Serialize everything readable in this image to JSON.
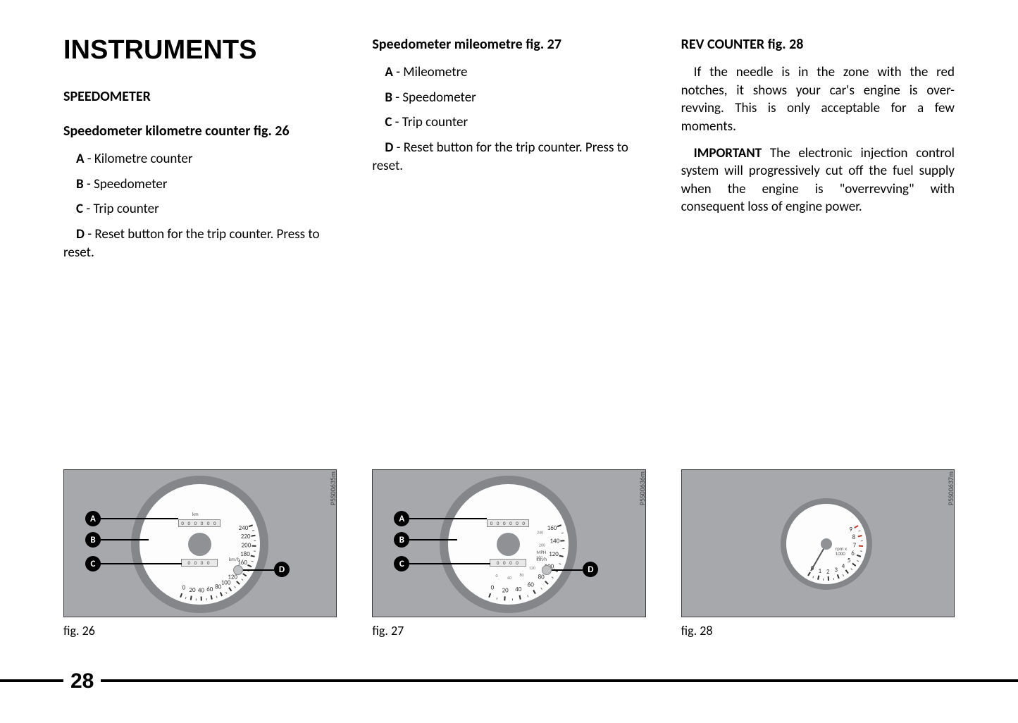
{
  "page_number": "28",
  "main_title": "INSTRUMENTS",
  "col1": {
    "h2": "SPEEDOMETER",
    "h3": "Speedometer kilometre counter fig. 26",
    "items": [
      {
        "label": "A",
        "text": " - Kilometre counter"
      },
      {
        "label": "B",
        "text": " - Speedometer"
      },
      {
        "label": "C",
        "text": " - Trip counter"
      },
      {
        "label": "D",
        "text": " - Reset button for the trip counter. Press to reset."
      }
    ]
  },
  "col2": {
    "h3": "Speedometer mileometre fig. 27",
    "items": [
      {
        "label": "A",
        "text": " - Mileometre"
      },
      {
        "label": "B",
        "text": " - Speedometer"
      },
      {
        "label": "C",
        "text": " - Trip counter"
      },
      {
        "label": "D",
        "text": " - Reset button for the trip counter. Press to reset."
      }
    ]
  },
  "col3": {
    "h3": "REV COUNTER fig. 28",
    "p1": "If the needle is in the zone with the red notches, it shows your car's engine is over-revving. This is only acceptable for a few moments.",
    "p2_strong": "IMPORTANT",
    "p2_rest": " The electronic injection control system will progressively cut off the fuel supply when the engine is \"overrevving\" with consequent loss of engine power."
  },
  "figs": {
    "f26": {
      "caption": "fig. 26",
      "code": "P5S00635m",
      "dial_numbers": [
        "0",
        "20",
        "40",
        "60",
        "80",
        "100",
        "120",
        "140",
        "160",
        "180",
        "200",
        "220",
        "240"
      ],
      "unit1": "km",
      "unit2": "km/h",
      "callouts": [
        "A",
        "B",
        "C",
        "D"
      ]
    },
    "f27": {
      "caption": "fig. 27",
      "code": "P5S00636m",
      "outer_numbers": [
        "0",
        "20",
        "40",
        "60",
        "80",
        "100",
        "120",
        "140",
        "160"
      ],
      "inner_numbers": [
        "0",
        "40",
        "80",
        "120",
        "160",
        "200",
        "240"
      ],
      "unit1": "MPH",
      "unit2": "km/h",
      "callouts": [
        "A",
        "B",
        "C",
        "D"
      ]
    },
    "f28": {
      "caption": "fig. 28",
      "code": "P5S00637m",
      "dial_numbers": [
        "0",
        "1",
        "2",
        "3",
        "4",
        "5",
        "6",
        "7",
        "8",
        "9"
      ],
      "unit": "rpm x 1000"
    }
  },
  "colors": {
    "fig_bg": "#a6a8ab",
    "gauge_ring": "#848689",
    "gauge_face": "#fdfdfd",
    "callout_bg": "#000000"
  }
}
